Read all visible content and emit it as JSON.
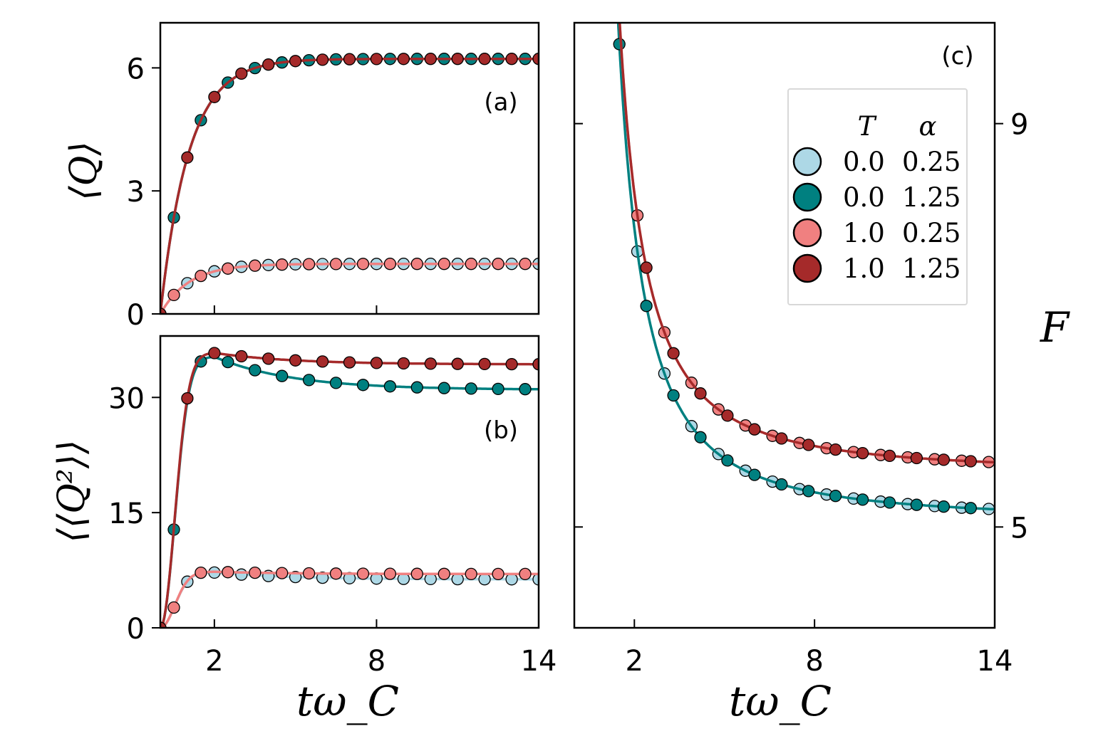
{
  "colors": {
    "light_blue": "#add8e6",
    "teal": "#008080",
    "pink": "#f08080",
    "dark_red": "#a52a2a"
  },
  "legend": {
    "col_T": "T",
    "col_alpha": "α",
    "entries": [
      {
        "T": "0.0",
        "alpha": "0.25",
        "color": "#add8e6"
      },
      {
        "T": "0.0",
        "alpha": "1.25",
        "color": "#008080"
      },
      {
        "T": "1.0",
        "alpha": "0.25",
        "color": "#f08080"
      },
      {
        "T": "1.0",
        "alpha": "1.25",
        "color": "#a52a2a"
      }
    ]
  },
  "chart_data": [
    {
      "id": "a",
      "type": "line",
      "panel_label": "(a)",
      "ylabel": "⟨Q⟩",
      "xlabel": "",
      "xlim": [
        0,
        14
      ],
      "ylim": [
        0,
        7.1
      ],
      "yticks": [
        0,
        3,
        6
      ],
      "xticks": [
        2,
        8,
        14
      ],
      "show_xticklabels": false,
      "series": [
        {
          "name": "T=0.0, α=0.25",
          "model": "qa",
          "asym": 1.22,
          "rate": 0.95,
          "offset": 0.0
        },
        {
          "name": "T=0.0, α=1.25",
          "model": "qa",
          "asym": 6.22,
          "rate": 0.95,
          "offset": 0.5
        },
        {
          "name": "T=1.0, α=0.25",
          "model": "qa",
          "asym": 1.22,
          "rate": 0.95,
          "offset": 0.5
        },
        {
          "name": "T=1.0, α=1.25",
          "model": "qa",
          "asym": 6.22,
          "rate": 0.95,
          "offset": 0.0
        }
      ]
    },
    {
      "id": "b",
      "type": "line",
      "panel_label": "(b)",
      "ylabel": "⟨⟨Q²⟩⟩",
      "xlabel": "tω_C",
      "xlim": [
        0,
        14
      ],
      "ylim": [
        0,
        38
      ],
      "yticks": [
        0,
        15,
        30
      ],
      "xticks": [
        2,
        8,
        14
      ],
      "show_xticklabels": true,
      "series": [
        {
          "name": "T=0.0, α=0.25",
          "model": "qb",
          "peak": 7.2,
          "final": 6.3,
          "offset": 0.0
        },
        {
          "name": "T=0.0, α=1.25",
          "model": "qb",
          "peak": 35.3,
          "final": 31.0,
          "offset": 0.5
        },
        {
          "name": "T=1.0, α=0.25",
          "model": "qb",
          "peak": 7.3,
          "final": 7.0,
          "offset": 0.5
        },
        {
          "name": "T=1.0, α=1.25",
          "model": "qb",
          "peak": 35.8,
          "final": 34.3,
          "offset": 0.0
        }
      ]
    },
    {
      "id": "c",
      "type": "line",
      "panel_label": "(c)",
      "ylabel": "F",
      "xlabel": "tω_C",
      "xlim": [
        0,
        14
      ],
      "ylim": [
        4,
        10
      ],
      "yticks": [
        5,
        9
      ],
      "xticks": [
        2,
        8,
        14
      ],
      "yaxis_side": "right",
      "series": [
        {
          "name": "T=0.0, α=0.25",
          "model": "f",
          "final": 5.07,
          "amp": 9.4,
          "pow": 1.7,
          "offset": 0.0
        },
        {
          "name": "T=0.0, α=1.25",
          "model": "f",
          "final": 5.07,
          "amp": 9.4,
          "pow": 1.7,
          "offset": 0.5
        },
        {
          "name": "T=1.0, α=0.25",
          "model": "f",
          "final": 5.54,
          "amp": 9.0,
          "pow": 1.7,
          "offset": 0.0
        },
        {
          "name": "T=1.0, α=1.25",
          "model": "f",
          "final": 5.54,
          "amp": 9.0,
          "pow": 1.7,
          "offset": 0.5
        }
      ]
    }
  ]
}
